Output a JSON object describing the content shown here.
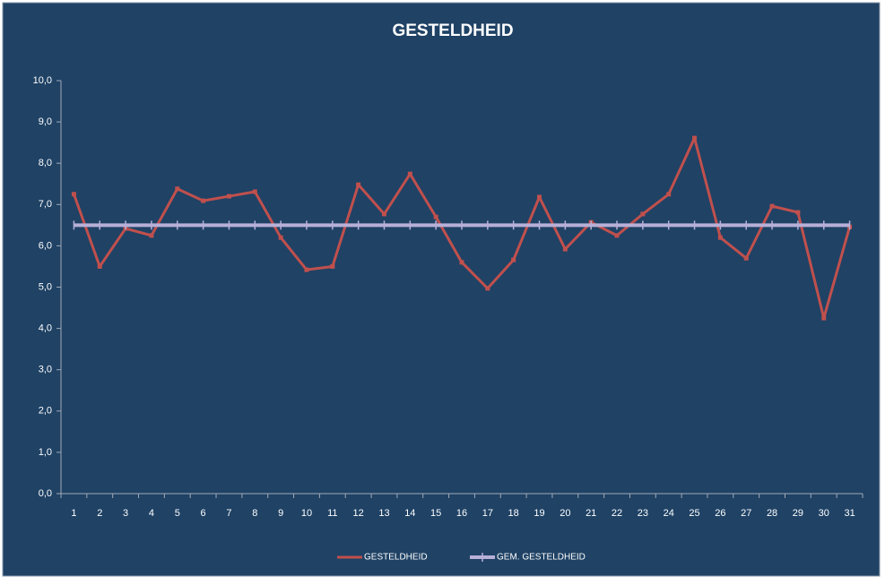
{
  "chart_data": {
    "type": "line",
    "title": "GESTELDHEID",
    "categories": [
      "1",
      "2",
      "3",
      "4",
      "5",
      "6",
      "7",
      "8",
      "9",
      "10",
      "11",
      "12",
      "13",
      "14",
      "15",
      "16",
      "17",
      "18",
      "19",
      "20",
      "21",
      "22",
      "23",
      "24",
      "25",
      "26",
      "27",
      "28",
      "29",
      "30",
      "31"
    ],
    "series": [
      {
        "name": "GESTELDHEID",
        "color": "#c0504d",
        "values": [
          7.25,
          5.5,
          6.42,
          6.25,
          7.38,
          7.09,
          7.2,
          7.31,
          6.2,
          5.42,
          5.5,
          7.48,
          6.77,
          7.74,
          6.7,
          5.6,
          4.97,
          5.66,
          7.18,
          5.92,
          6.57,
          6.25,
          6.77,
          7.25,
          8.61,
          6.2,
          5.7,
          6.96,
          6.81,
          4.25,
          6.46
        ]
      },
      {
        "name": "GEM. GESTELDHEID",
        "color": "#b8b0d8",
        "values": [
          6.5,
          6.5,
          6.5,
          6.5,
          6.5,
          6.5,
          6.5,
          6.5,
          6.5,
          6.5,
          6.5,
          6.5,
          6.5,
          6.5,
          6.5,
          6.5,
          6.5,
          6.5,
          6.5,
          6.5,
          6.5,
          6.5,
          6.5,
          6.5,
          6.5,
          6.5,
          6.5,
          6.5,
          6.5,
          6.5,
          6.5
        ]
      }
    ],
    "ylim": [
      0,
      10
    ],
    "yticks": [
      {
        "value": 0,
        "label": "0,0"
      },
      {
        "value": 1,
        "label": "1,0"
      },
      {
        "value": 2,
        "label": "2,0"
      },
      {
        "value": 3,
        "label": "3,0"
      },
      {
        "value": 4,
        "label": "4,0"
      },
      {
        "value": 5,
        "label": "5,0"
      },
      {
        "value": 6,
        "label": "6,0"
      },
      {
        "value": 7,
        "label": "7,0"
      },
      {
        "value": 8,
        "label": "8,0"
      },
      {
        "value": 9,
        "label": "9,0"
      },
      {
        "value": 10,
        "label": "10,0"
      }
    ],
    "legend": "bottom"
  }
}
